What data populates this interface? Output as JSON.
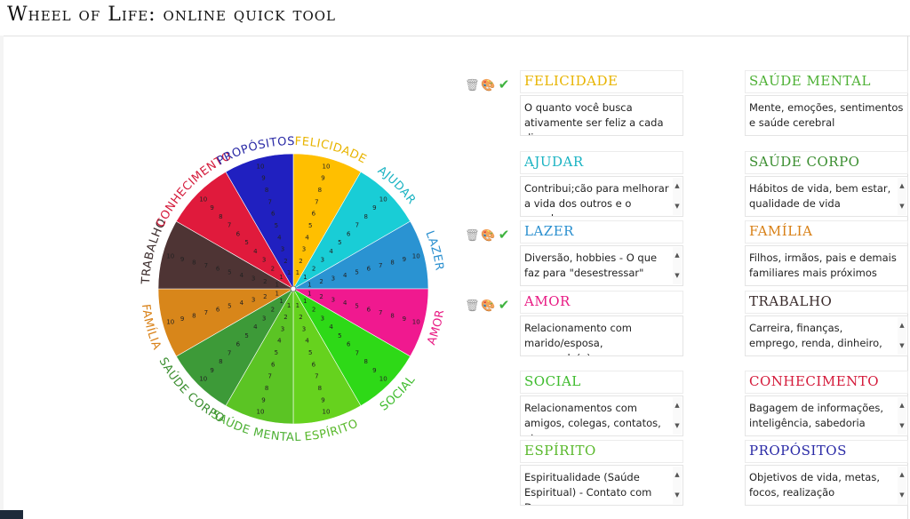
{
  "app": {
    "title": "Wheel of Life: online quick tool"
  },
  "wheel": {
    "rings": [
      "1",
      "2",
      "3",
      "4",
      "5",
      "6",
      "7",
      "8",
      "9",
      "10"
    ]
  },
  "areas": [
    {
      "key": "felicidade",
      "label": "Felicidade",
      "color": "#ffbf00",
      "text_color": "#e8b400",
      "description": "O quanto você busca ativamente ser feliz a cada dia",
      "has_scroll": false,
      "show_icons": true
    },
    {
      "key": "ajudar",
      "label": "Ajudar",
      "color": "#19cdd6",
      "text_color": "#1ab3c2",
      "description": "Contribui;cão para melhorar a vida dos outros e o mundo",
      "has_scroll": true,
      "show_icons": false
    },
    {
      "key": "lazer",
      "label": "Lazer",
      "color": "#2a93d2",
      "text_color": "#2a8fcf",
      "description": "Diversão, hobbies - O que faz para \"desestressar\"",
      "has_scroll": true,
      "show_icons": true
    },
    {
      "key": "amor",
      "label": "Amor",
      "color": "#f0198f",
      "text_color": "#e81a83",
      "description": "Relacionamento com marido/esposa, namorado(a)...",
      "has_scroll": false,
      "show_icons": true
    },
    {
      "key": "social",
      "label": "Social",
      "color": "#2ed917",
      "text_color": "#3dbb2c",
      "description": "Relacionamentos com amigos, colegas, contatos, etc",
      "has_scroll": true,
      "show_icons": false
    },
    {
      "key": "espirito",
      "label": "Espírito",
      "color": "#66d21e",
      "text_color": "#58b82a",
      "description": "Espiritualidade (Saúde Espiritual) - Contato com Deus",
      "has_scroll": true,
      "show_icons": false
    },
    {
      "key": "saude_mental",
      "label": "Saúde mental",
      "color": "#5bc424",
      "text_color": "#4db034",
      "description": "Mente, emoções, sentimentos e saúde cerebral",
      "has_scroll": false,
      "show_icons": false
    },
    {
      "key": "saude_corpo",
      "label": "Saúde corpo",
      "color": "#3d9a38",
      "text_color": "#3b8e30",
      "description": "Hábitos de vida, bem estar, qualidade de vida",
      "has_scroll": true,
      "show_icons": false
    },
    {
      "key": "familia",
      "label": "Família",
      "color": "#d8861a",
      "text_color": "#d88016",
      "description": "Filhos, irmãos, pais e demais familiares mais próximos",
      "has_scroll": false,
      "show_icons": false
    },
    {
      "key": "trabalho",
      "label": "Trabalho",
      "color": "#4e3434",
      "text_color": "#3a2b2b",
      "description": "Carreira, finanças, emprego, renda, dinheiro, ...",
      "has_scroll": true,
      "show_icons": false
    },
    {
      "key": "conhecimento",
      "label": "Conhecimento",
      "color": "#e01a3c",
      "text_color": "#d41a3a",
      "description": "Bagagem de informações, inteligência, sabedoria",
      "has_scroll": true,
      "show_icons": false
    },
    {
      "key": "propositos",
      "label": "Propósitos",
      "color": "#2020c0",
      "text_color": "#2a2aa6",
      "description": "Objetivos de vida, metas, focos, realização",
      "has_scroll": true,
      "show_icons": false
    }
  ]
}
